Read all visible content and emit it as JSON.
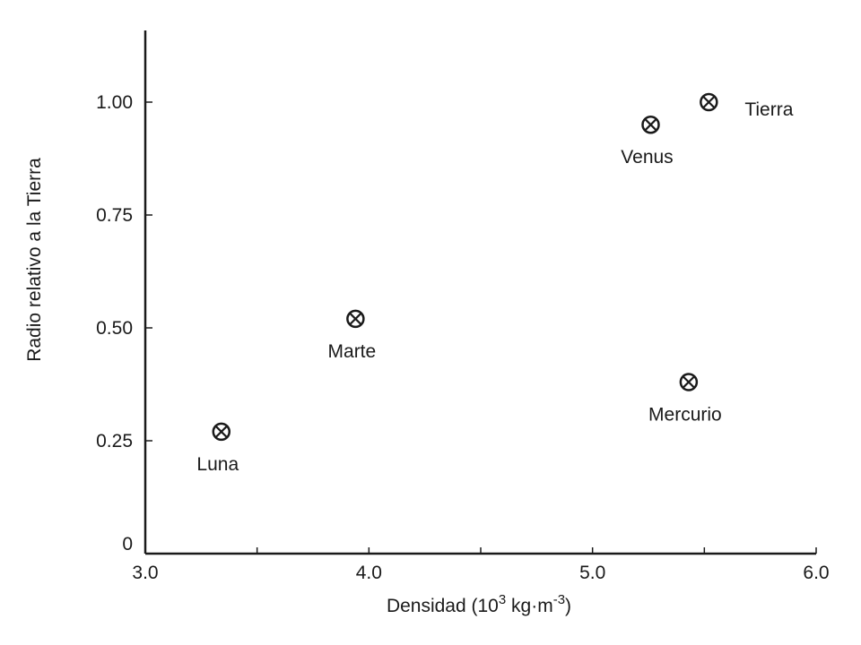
{
  "chart_data": {
    "type": "scatter",
    "title": "",
    "xlabel": {
      "main": "Densidad (10",
      "sup1": "3",
      "mid": " kg·m",
      "sup2": "-3",
      "end": ")"
    },
    "ylabel": "Radio relativo a la Tierra",
    "xlim": [
      3.0,
      6.0
    ],
    "ylim": [
      0,
      1.14
    ],
    "x_ticks": [
      3.0,
      3.5,
      4.0,
      4.5,
      5.0,
      5.5,
      6.0
    ],
    "x_tick_labels": [
      "3.0",
      "",
      "4.0",
      "",
      "5.0",
      "",
      "6.0"
    ],
    "y_ticks": [
      0,
      0.25,
      0.5,
      0.75,
      1.0
    ],
    "y_tick_labels": [
      "0",
      "0.25",
      "0.50",
      "0.75",
      "1.00"
    ],
    "grid": false,
    "legend": "none",
    "marker": "circle-cross",
    "points": [
      {
        "label": "Luna",
        "x": 3.34,
        "y": 0.27,
        "label_position": "below"
      },
      {
        "label": "Marte",
        "x": 3.94,
        "y": 0.52,
        "label_position": "below"
      },
      {
        "label": "Venus",
        "x": 5.26,
        "y": 0.95,
        "label_position": "below"
      },
      {
        "label": "Tierra",
        "x": 5.52,
        "y": 1.0,
        "label_position": "right"
      },
      {
        "label": "Mercurio",
        "x": 5.43,
        "y": 0.38,
        "label_position": "below"
      }
    ]
  }
}
